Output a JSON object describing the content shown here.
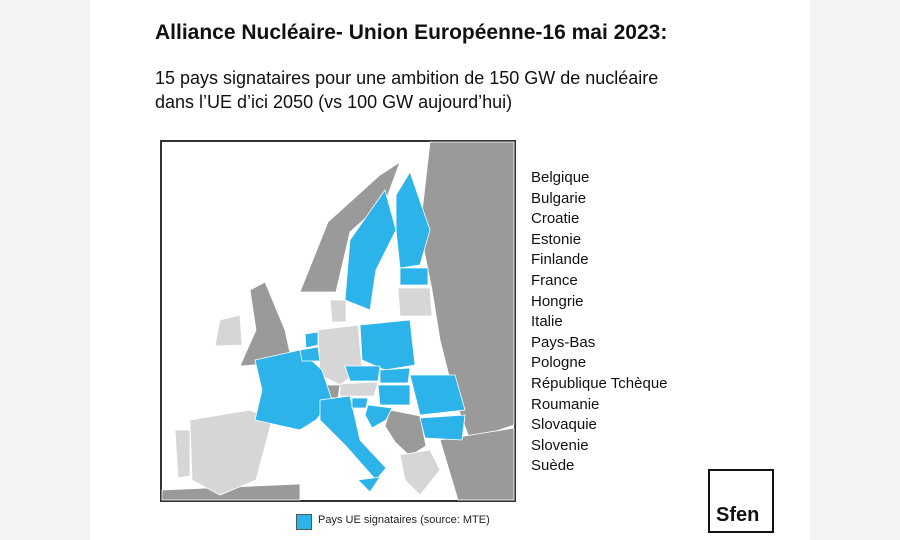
{
  "header": {
    "title": "Alliance Nucléaire- Union Européenne-16 mai 2023:",
    "subtitle_lines": [
      "15 pays signataires pour une ambition de 150 GW de nucléaire",
      "dans l’UE d’ici 2050 (vs 100 GW aujourd’hui)"
    ]
  },
  "countries": [
    "Belgique",
    "Bulgarie",
    "Croatie",
    "Estonie",
    "Finlande",
    "France",
    "Hongrie",
    "Italie",
    "Pays-Bas",
    "Pologne",
    "République Tchèque",
    "Roumanie",
    "Slovaquie",
    "Slovenie",
    "Suède"
  ],
  "legend": {
    "label": "Pays UE signataires (source: MTE)"
  },
  "logo": {
    "text": "Sfen"
  }
}
